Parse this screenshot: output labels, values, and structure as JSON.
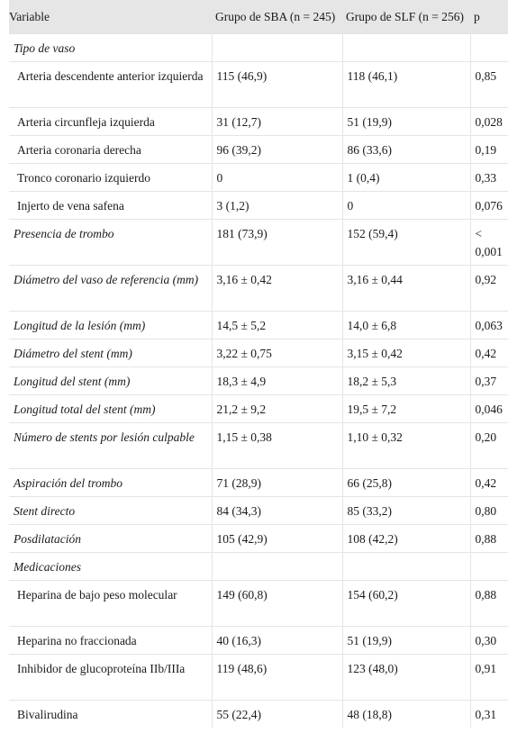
{
  "header": {
    "variable": "Variable",
    "sba": "Grupo de SBA (n = 245)",
    "slf": "Grupo de SLF (n = 256)",
    "p": "p"
  },
  "rows": [
    {
      "label": "Tipo de vaso",
      "sba": "",
      "slf": "",
      "p": ""
    },
    {
      "label": "Arteria descendente anterior izquierda",
      "sba": "115 (46,9)",
      "slf": "118 (46,1)",
      "p": "0,85"
    },
    {
      "label": "Arteria circunfleja izquierda",
      "sba": "31 (12,7)",
      "slf": "51 (19,9)",
      "p": "0,028"
    },
    {
      "label": "Arteria coronaria derecha",
      "sba": "96 (39,2)",
      "slf": "86 (33,6)",
      "p": "0,19"
    },
    {
      "label": "Tronco coronario izquierdo",
      "sba": "0",
      "slf": "1 (0,4)",
      "p": "0,33"
    },
    {
      "label": "Injerto de vena safena",
      "sba": "3 (1,2)",
      "slf": "0",
      "p": "0,076"
    },
    {
      "label": "Presencia de trombo",
      "sba": "181 (73,9)",
      "slf": "152 (59,4)",
      "p": "< 0,001"
    },
    {
      "label": "Diámetro del vaso de referencia (mm)",
      "sba": "3,16 ± 0,42",
      "slf": "3,16 ± 0,44",
      "p": "0,92"
    },
    {
      "label": "Longitud de la lesión (mm)",
      "sba": "14,5 ± 5,2",
      "slf": "14,0 ± 6,8",
      "p": "0,063"
    },
    {
      "label": "Diámetro del stent (mm)",
      "sba": "3,22 ± 0,75",
      "slf": "3,15 ± 0,42",
      "p": "0,42"
    },
    {
      "label": "Longitud del stent (mm)",
      "sba": "18,3 ± 4,9",
      "slf": "18,2 ± 5,3",
      "p": "0,37"
    },
    {
      "label": "Longitud total del stent (mm)",
      "sba": "21,2 ± 9,2",
      "slf": "19,5 ± 7,2",
      "p": "0,046"
    },
    {
      "label": "Número de stents por lesión culpable",
      "sba": "1,15 ± 0,38",
      "slf": "1,10 ± 0,32",
      "p": "0,20"
    },
    {
      "label": "Aspiración del trombo",
      "sba": "71 (28,9)",
      "slf": "66 (25,8)",
      "p": "0,42"
    },
    {
      "label": "Stent directo",
      "sba": "84 (34,3)",
      "slf": "85 (33,2)",
      "p": "0,80"
    },
    {
      "label": "Posdilatación",
      "sba": "105 (42,9)",
      "slf": "108 (42,2)",
      "p": "0,88"
    },
    {
      "label": "Medicaciones",
      "sba": "",
      "slf": "",
      "p": ""
    },
    {
      "label": "Heparina de bajo peso molecular",
      "sba": "149 (60,8)",
      "slf": "154 (60,2)",
      "p": "0,88"
    },
    {
      "label": "Heparina no fraccionada",
      "sba": "40 (16,3)",
      "slf": "51 (19,9)",
      "p": "0,30"
    },
    {
      "label": "Inhibidor de glucoproteína IIb/IIIa",
      "sba": "119 (48,6)",
      "slf": "123 (48,0)",
      "p": "0,91"
    },
    {
      "label": "Bivalirudina",
      "sba": "55 (22,4)",
      "slf": "48 (18,8)",
      "p": "0,31"
    }
  ]
}
